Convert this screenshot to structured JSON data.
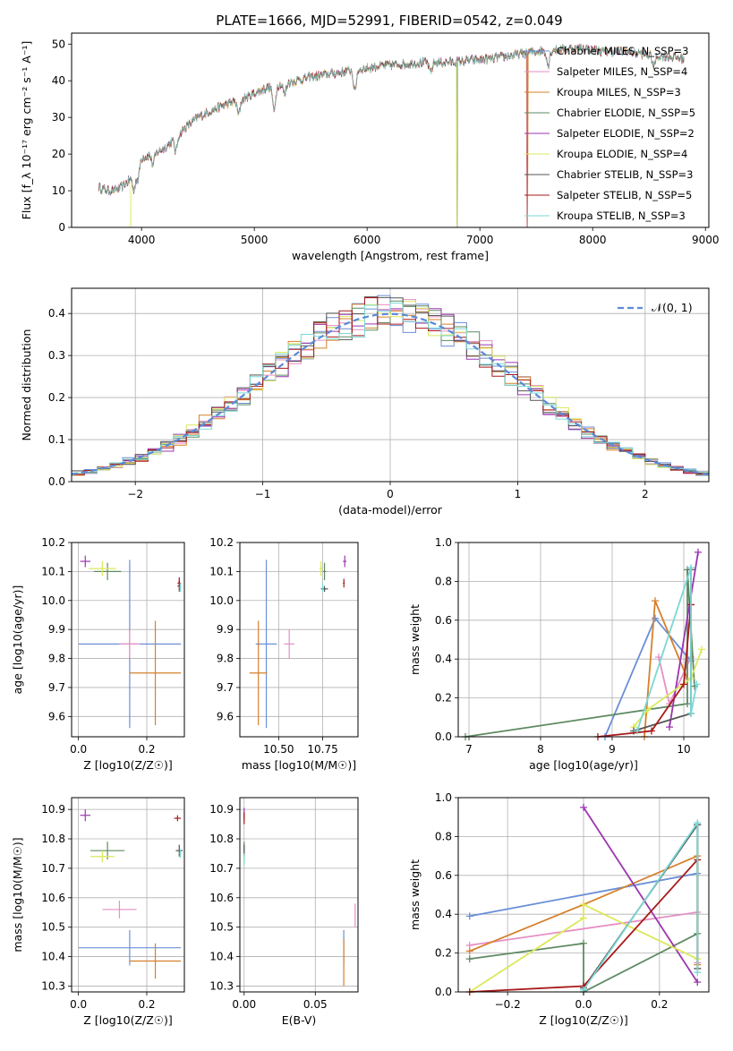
{
  "chart_data": [
    {
      "id": "spectrum",
      "type": "line",
      "title": "PLATE=1666, MJD=52991, FIBERID=0542, z=0.049",
      "xlabel": "wavelength [Angstrom, rest frame]",
      "ylabel": "Flux [f_λ 10⁻¹⁷ erg cm⁻² s⁻¹ A⁻¹]",
      "xlim": [
        3380,
        9030
      ],
      "ylim": [
        0,
        53
      ],
      "xticks": [
        4000,
        5000,
        6000,
        7000,
        8000,
        9000
      ],
      "yticks": [
        0,
        10,
        20,
        30,
        40,
        50
      ],
      "grid": false,
      "legend_position": "top-right",
      "series": [
        {
          "name": "Chabrier MILES, N_SSP=3",
          "color": "#6a8fd8"
        },
        {
          "name": "Salpeter MILES, N_SSP=4",
          "color": "#e68fc5"
        },
        {
          "name": "Kroupa MILES, N_SSP=3",
          "color": "#d6802c"
        },
        {
          "name": "Chabrier ELODIE, N_SSP=5",
          "color": "#5e8a62"
        },
        {
          "name": "Salpeter ELODIE, N_SSP=2",
          "color": "#9b36b0"
        },
        {
          "name": "Kroupa ELODIE, N_SSP=4",
          "color": "#dbe85c"
        },
        {
          "name": "Chabrier STELIB, N_SSP=3",
          "color": "#555555"
        },
        {
          "name": "Salpeter STELIB, N_SSP=5",
          "color": "#a81a1a"
        },
        {
          "name": "Kroupa STELIB, N_SSP=3",
          "color": "#7ad7d4"
        }
      ],
      "continuum": {
        "x": [
          3620,
          3700,
          3800,
          3900,
          4000,
          4100,
          4200,
          4300,
          4400,
          4500,
          4700,
          4900,
          5100,
          5300,
          5500,
          5700,
          5900,
          6100,
          6300,
          6500,
          6700,
          6900,
          7100,
          7300,
          7500,
          7700,
          7900,
          8100,
          8300,
          8500,
          8700,
          8810
        ],
        "y": [
          11,
          10,
          10.5,
          13,
          19,
          20,
          21.5,
          24.5,
          27.5,
          30,
          33,
          35,
          38,
          39.5,
          41,
          42,
          43,
          44,
          44.5,
          45,
          45,
          45.5,
          46,
          47,
          48,
          48.5,
          49,
          48,
          48,
          47,
          46.5,
          46
        ]
      },
      "absorption_lines": [
        {
          "x": 3934,
          "depth": 5
        },
        {
          "x": 3969,
          "depth": 4
        },
        {
          "x": 4102,
          "depth": 3
        },
        {
          "x": 4304,
          "depth": 4
        },
        {
          "x": 4861,
          "depth": 4
        },
        {
          "x": 5175,
          "depth": 7
        },
        {
          "x": 5270,
          "depth": 3
        },
        {
          "x": 5892,
          "depth": 6
        },
        {
          "x": 6563,
          "depth": 3
        },
        {
          "x": 7605,
          "depth": 4
        },
        {
          "x": 8542,
          "depth": 3
        }
      ],
      "dropouts": [
        {
          "series": "Kroupa ELODIE, N_SSP=4",
          "x": 3905
        },
        {
          "series": "Kroupa ELODIE, N_SSP=4",
          "x": 6795
        },
        {
          "series": "Chabrier ELODIE, N_SSP=5",
          "x": 6800
        },
        {
          "series": "Salpeter STELIB, N_SSP=5",
          "x": 7420
        },
        {
          "series": "Kroupa MILES, N_SSP=3",
          "x": 7425
        }
      ]
    },
    {
      "id": "residuals",
      "type": "histogram",
      "xlabel": "(data-model)/error",
      "ylabel": "Normed distribution",
      "xlim": [
        -2.5,
        2.5
      ],
      "ylim": [
        0,
        0.46
      ],
      "xticks": [
        -2,
        -1,
        0,
        1,
        2
      ],
      "yticks": [
        0.0,
        0.1,
        0.2,
        0.3,
        0.4
      ],
      "grid": true,
      "bins": [
        -2.5,
        2.5,
        50
      ],
      "curve": {
        "name": "𝒩(0, 1)",
        "color": "#5b8ad8",
        "style": "dashed",
        "mean": 0,
        "sigma": 1
      },
      "legend_position": "top-right"
    },
    {
      "id": "age-vs-z",
      "type": "scatter",
      "xlabel": "Z [log10(Z/Z☉)]",
      "ylabel": "age [log10(age/yr)]",
      "xlim": [
        -0.02,
        0.31
      ],
      "ylim": [
        9.53,
        10.2
      ],
      "xticks": [
        0.0,
        0.2
      ],
      "yticks": [
        9.6,
        9.7,
        9.8,
        9.9,
        10.0,
        10.1,
        10.2
      ],
      "points": [
        {
          "series": 0,
          "x": 0.15,
          "y": 9.85,
          "xerr": 0.15,
          "yerr": 0.29
        },
        {
          "series": 1,
          "x": 0.15,
          "y": 9.85,
          "xerr": 0.03,
          "yerr": 0.05
        },
        {
          "series": 2,
          "x": 0.225,
          "y": 9.75,
          "xerr": 0.075,
          "yerr": 0.18
        },
        {
          "series": 3,
          "x": 0.085,
          "y": 10.1,
          "xerr": 0.04,
          "yerr": 0.03
        },
        {
          "series": 4,
          "x": 0.02,
          "y": 10.135,
          "xerr": 0.015,
          "yerr": 0.02
        },
        {
          "series": 5,
          "x": 0.07,
          "y": 10.11,
          "xerr": 0.04,
          "yerr": 0.025
        },
        {
          "series": 6,
          "x": 0.295,
          "y": 10.05,
          "xerr": 0.005,
          "yerr": 0.02
        },
        {
          "series": 7,
          "x": 0.295,
          "y": 10.06,
          "xerr": 0.005,
          "yerr": 0.02
        },
        {
          "series": 8,
          "x": 0.298,
          "y": 10.045,
          "xerr": 0.003,
          "yerr": 0.015
        }
      ]
    },
    {
      "id": "age-vs-mass",
      "type": "scatter",
      "xlabel": "mass [log10(M/M☉)]",
      "ylabel": "",
      "xlim": [
        10.28,
        10.95
      ],
      "ylim": [
        9.53,
        10.2
      ],
      "xticks": [
        10.5,
        10.75
      ],
      "yticks": [
        9.6,
        9.7,
        9.8,
        9.9,
        10.0,
        10.1,
        10.2
      ],
      "points": [
        {
          "series": 0,
          "x": 10.43,
          "y": 9.85,
          "xerr": 0.06,
          "yerr": 0.29
        },
        {
          "series": 1,
          "x": 10.56,
          "y": 9.85,
          "xerr": 0.03,
          "yerr": 0.05
        },
        {
          "series": 2,
          "x": 10.385,
          "y": 9.75,
          "xerr": 0.05,
          "yerr": 0.18
        },
        {
          "series": 3,
          "x": 10.76,
          "y": 10.1,
          "xerr": 0.01,
          "yerr": 0.03
        },
        {
          "series": 4,
          "x": 10.875,
          "y": 10.135,
          "xerr": 0.01,
          "yerr": 0.02
        },
        {
          "series": 5,
          "x": 10.74,
          "y": 10.11,
          "xerr": 0.01,
          "yerr": 0.025
        },
        {
          "series": 6,
          "x": 10.76,
          "y": 10.04,
          "xerr": 0.02,
          "yerr": 0.01
        },
        {
          "series": 7,
          "x": 10.87,
          "y": 10.06,
          "xerr": 0.005,
          "yerr": 0.015
        },
        {
          "series": 8,
          "x": 10.75,
          "y": 10.045,
          "xerr": 0.005,
          "yerr": 0.015
        }
      ]
    },
    {
      "id": "weight-vs-age",
      "type": "line",
      "xlabel": "age [log10(age/yr)]",
      "ylabel": "mass weight",
      "xlim": [
        6.85,
        10.35
      ],
      "ylim": [
        0,
        1
      ],
      "xticks": [
        7,
        8,
        9,
        10
      ],
      "yticks": [
        0.0,
        0.2,
        0.4,
        0.6,
        0.8,
        1.0
      ],
      "grid": true,
      "series": [
        {
          "series": 0,
          "x": [
            8.9,
            9.6,
            10.1
          ],
          "y": [
            0.0,
            0.61,
            0.39
          ]
        },
        {
          "series": 1,
          "x": [
            9.65,
            9.8,
            10.1
          ],
          "y": [
            0.41,
            0.17,
            0.41
          ]
        },
        {
          "series": 2,
          "x": [
            9.45,
            9.6,
            10.05
          ],
          "y": [
            0.0,
            0.7,
            0.3
          ]
        },
        {
          "series": 3,
          "x": [
            6.95,
            10.05,
            10.05,
            10.15
          ],
          "y": [
            0.0,
            0.17,
            0.86,
            0.26
          ]
        },
        {
          "series": 4,
          "x": [
            9.8,
            10.2
          ],
          "y": [
            0.05,
            0.95
          ]
        },
        {
          "series": 5,
          "x": [
            9.3,
            9.5,
            10.1,
            10.25
          ],
          "y": [
            0.05,
            0.14,
            0.3,
            0.45
          ]
        },
        {
          "series": 6,
          "x": [
            9.3,
            10.1,
            10.1
          ],
          "y": [
            0.03,
            0.12,
            0.86
          ]
        },
        {
          "series": 7,
          "x": [
            8.8,
            9.55,
            10.0,
            10.1
          ],
          "y": [
            0.0,
            0.03,
            0.27,
            0.68
          ]
        },
        {
          "series": 8,
          "x": [
            9.35,
            10.1,
            10.1,
            10.18
          ],
          "y": [
            0.03,
            0.87,
            0.12,
            0.27
          ]
        }
      ]
    },
    {
      "id": "mass-vs-z",
      "type": "scatter",
      "xlabel": "Z [log10(Z/Z☉)]",
      "ylabel": "mass [log10(M/M☉)]",
      "xlim": [
        -0.02,
        0.31
      ],
      "ylim": [
        10.28,
        10.94
      ],
      "xticks": [
        0.0,
        0.2
      ],
      "yticks": [
        10.3,
        10.4,
        10.5,
        10.6,
        10.7,
        10.8,
        10.9
      ],
      "points": [
        {
          "series": 0,
          "x": 0.15,
          "y": 10.43,
          "xerr": 0.15,
          "yerr": 0.06
        },
        {
          "series": 1,
          "x": 0.12,
          "y": 10.56,
          "xerr": 0.05,
          "yerr": 0.03
        },
        {
          "series": 2,
          "x": 0.225,
          "y": 10.385,
          "xerr": 0.075,
          "yerr": 0.06
        },
        {
          "series": 3,
          "x": 0.085,
          "y": 10.76,
          "xerr": 0.05,
          "yerr": 0.03
        },
        {
          "series": 4,
          "x": 0.02,
          "y": 10.88,
          "xerr": 0.015,
          "yerr": 0.02
        },
        {
          "series": 5,
          "x": 0.07,
          "y": 10.74,
          "xerr": 0.035,
          "yerr": 0.02
        },
        {
          "series": 6,
          "x": 0.295,
          "y": 10.76,
          "xerr": 0.01,
          "yerr": 0.02
        },
        {
          "series": 7,
          "x": 0.29,
          "y": 10.87,
          "xerr": 0.01,
          "yerr": 0.01
        },
        {
          "series": 8,
          "x": 0.298,
          "y": 10.75,
          "xerr": 0.003,
          "yerr": 0.015
        }
      ]
    },
    {
      "id": "mass-vs-ebv",
      "type": "scatter",
      "xlabel": "E(B-V)",
      "ylabel": "",
      "xlim": [
        -0.003,
        0.08
      ],
      "ylim": [
        10.28,
        10.94
      ],
      "xticks": [
        0.0,
        0.05
      ],
      "yticks": [
        10.3,
        10.4,
        10.5,
        10.6,
        10.7,
        10.8,
        10.9
      ],
      "points": [
        {
          "series": 0,
          "x": 0.07,
          "y": 10.43,
          "xerr": 0.0,
          "yerr": 0.06
        },
        {
          "series": 1,
          "x": 0.078,
          "y": 10.54,
          "xerr": 0.0,
          "yerr": 0.04
        },
        {
          "series": 2,
          "x": 0.07,
          "y": 10.38,
          "xerr": 0.0,
          "yerr": 0.08
        },
        {
          "series": 3,
          "x": 0.0,
          "y": 10.76,
          "xerr": 0.0,
          "yerr": 0.03
        },
        {
          "series": 4,
          "x": 0.0,
          "y": 10.885,
          "xerr": 0.0,
          "yerr": 0.02
        },
        {
          "series": 5,
          "x": 0.0,
          "y": 10.74,
          "xerr": 0.0,
          "yerr": 0.02
        },
        {
          "series": 6,
          "x": 0.0,
          "y": 10.76,
          "xerr": 0.0,
          "yerr": 0.02
        },
        {
          "series": 7,
          "x": 0.0,
          "y": 10.87,
          "xerr": 0.0,
          "yerr": 0.02
        },
        {
          "series": 8,
          "x": 0.0,
          "y": 10.73,
          "xerr": 0.0,
          "yerr": 0.02
        }
      ]
    },
    {
      "id": "weight-vs-z",
      "type": "line",
      "xlabel": "Z [log10(Z/Z☉)]",
      "ylabel": "mass weight",
      "xlim": [
        -0.33,
        0.33
      ],
      "ylim": [
        0,
        1
      ],
      "xticks": [
        -0.2,
        0.0,
        0.2
      ],
      "yticks": [
        0.0,
        0.2,
        0.4,
        0.6,
        0.8,
        1.0
      ],
      "grid": true,
      "series": [
        {
          "series": 0,
          "x": [
            -0.3,
            0.3
          ],
          "y": [
            0.39,
            0.61
          ]
        },
        {
          "series": 1,
          "x": [
            -0.3,
            0.3,
            0.3
          ],
          "y": [
            0.24,
            0.41,
            0.15
          ]
        },
        {
          "series": 2,
          "x": [
            -0.3,
            0.0,
            0.3,
            0.3
          ],
          "y": [
            0.21,
            0.45,
            0.7,
            0.14
          ]
        },
        {
          "series": 3,
          "x": [
            -0.3,
            0.0,
            0.0,
            0.3,
            0.3
          ],
          "y": [
            0.17,
            0.25,
            0.0,
            0.3,
            0.86
          ]
        },
        {
          "series": 4,
          "x": [
            0.0,
            0.3
          ],
          "y": [
            0.95,
            0.05
          ]
        },
        {
          "series": 5,
          "x": [
            -0.3,
            0.0,
            0.0,
            0.3
          ],
          "y": [
            0.0,
            0.38,
            0.45,
            0.17
          ]
        },
        {
          "series": 6,
          "x": [
            0.0,
            0.3,
            0.3
          ],
          "y": [
            0.02,
            0.86,
            0.12
          ]
        },
        {
          "series": 7,
          "x": [
            -0.3,
            0.0,
            0.3
          ],
          "y": [
            0.0,
            0.03,
            0.68
          ]
        },
        {
          "series": 8,
          "x": [
            0.0,
            0.3,
            0.3
          ],
          "y": [
            0.01,
            0.87,
            0.1
          ]
        }
      ]
    }
  ]
}
